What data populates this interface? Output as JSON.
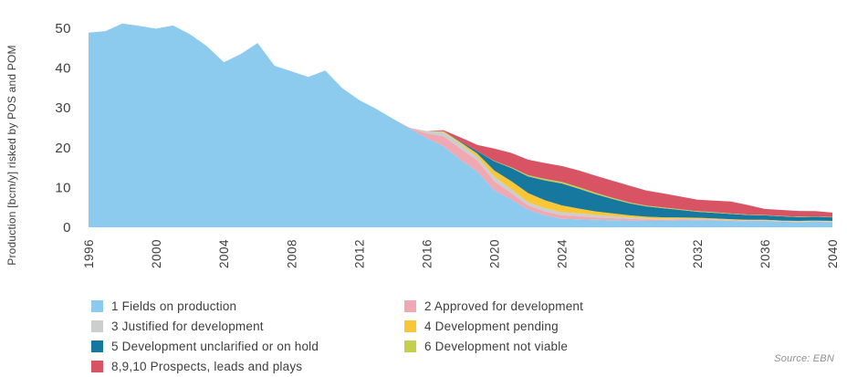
{
  "source": "Source: EBN",
  "colors": {
    "background": "#ffffff",
    "text": "#3e3e3e",
    "source_text": "#8f8f8f"
  },
  "chart_data": {
    "type": "area",
    "stacked": true,
    "title": "",
    "xlabel": "",
    "ylabel": "Production [bcm/y] risked by POS and POM",
    "grid": false,
    "legend_position": "bottom",
    "ylim": [
      0,
      55
    ],
    "y_ticks": [
      0,
      10,
      20,
      30,
      40,
      50
    ],
    "x_ticks": [
      1996,
      2000,
      2004,
      2008,
      2012,
      2016,
      2020,
      2024,
      2028,
      2032,
      2036,
      2040
    ],
    "x": [
      1996,
      1997,
      1998,
      1999,
      2000,
      2001,
      2002,
      2003,
      2004,
      2005,
      2006,
      2007,
      2008,
      2009,
      2010,
      2011,
      2012,
      2013,
      2014,
      2015,
      2016,
      2017,
      2018,
      2019,
      2020,
      2021,
      2022,
      2023,
      2024,
      2025,
      2026,
      2027,
      2028,
      2029,
      2030,
      2031,
      2032,
      2033,
      2034,
      2035,
      2036,
      2037,
      2038,
      2039,
      2040
    ],
    "series": [
      {
        "name": "1 Fields on production",
        "color": "#8dcbee",
        "values": [
          48.9,
          49.3,
          51.2,
          50.6,
          49.9,
          50.7,
          48.5,
          45.5,
          41.5,
          43.5,
          46.3,
          40.6,
          39.2,
          37.8,
          39.4,
          35.0,
          32.0,
          29.8,
          27.3,
          24.8,
          22.4,
          20.4,
          17.0,
          14.0,
          9.3,
          7.0,
          4.4,
          3.0,
          2.1,
          2.0,
          1.9,
          1.8,
          1.7,
          1.6,
          1.6,
          1.7,
          1.8,
          1.7,
          1.6,
          1.5,
          1.5,
          1.4,
          1.3,
          1.4,
          1.3
        ]
      },
      {
        "name": "2 Approved for development",
        "color": "#f0a8b2",
        "values": [
          0,
          0,
          0,
          0,
          0,
          0,
          0,
          0,
          0,
          0,
          0,
          0,
          0,
          0,
          0,
          0,
          0,
          0,
          0,
          0.2,
          1.2,
          2.5,
          2.8,
          2.8,
          2.3,
          1.6,
          1.1,
          1.0,
          0.9,
          0.8,
          0.6,
          0.5,
          0.4,
          0.35,
          0.3,
          0.25,
          0.2,
          0.2,
          0.15,
          0.15,
          0.15,
          0.1,
          0.1,
          0.1,
          0.1
        ]
      },
      {
        "name": "3 Justified for development",
        "color": "#cbcecd",
        "values": [
          0,
          0,
          0,
          0,
          0,
          0,
          0,
          0,
          0,
          0,
          0,
          0,
          0,
          0,
          0,
          0,
          0,
          0,
          0,
          0,
          0.6,
          1.0,
          1.2,
          0.9,
          1.2,
          1.0,
          0.8,
          0.8,
          0.8,
          0.7,
          0.6,
          0.5,
          0.4,
          0.3,
          0.25,
          0.2,
          0.15,
          0.15,
          0.1,
          0.1,
          0.1,
          0.1,
          0.1,
          0.1,
          0.1
        ]
      },
      {
        "name": "4 Development pending",
        "color": "#f9c636",
        "values": [
          0,
          0,
          0,
          0,
          0,
          0,
          0,
          0,
          0,
          0,
          0,
          0,
          0,
          0,
          0,
          0,
          0,
          0,
          0,
          0,
          0,
          0.2,
          0.4,
          0.8,
          1.5,
          2.0,
          2.3,
          2.0,
          1.7,
          1.2,
          0.9,
          0.7,
          0.5,
          0.4,
          0.35,
          0.3,
          0.25,
          0.2,
          0.2,
          0.15,
          0.15,
          0.1,
          0.1,
          0.1,
          0.1
        ]
      },
      {
        "name": "5 Development unclarified or on hold",
        "color": "#16789f",
        "values": [
          0,
          0,
          0,
          0,
          0,
          0,
          0,
          0,
          0,
          0,
          0,
          0,
          0,
          0,
          0,
          0,
          0,
          0,
          0,
          0,
          0,
          0,
          0.2,
          0.6,
          2.3,
          3.3,
          4.2,
          5.0,
          5.5,
          5.0,
          4.3,
          3.6,
          3.0,
          2.6,
          2.3,
          1.9,
          1.5,
          1.4,
          1.3,
          1.2,
          1.1,
          1.05,
          1.0,
          0.95,
          0.9
        ]
      },
      {
        "name": "6 Development not viable",
        "color": "#c4cf4d",
        "values": [
          0,
          0,
          0,
          0,
          0,
          0,
          0,
          0,
          0,
          0,
          0,
          0,
          0,
          0,
          0,
          0,
          0,
          0,
          0,
          0,
          0,
          0,
          0,
          0,
          0.1,
          0.2,
          0.3,
          0.35,
          0.4,
          0.4,
          0.35,
          0.3,
          0.25,
          0.2,
          0.2,
          0.18,
          0.15,
          0.15,
          0.12,
          0.1,
          0.1,
          0.1,
          0.1,
          0.1,
          0.1
        ]
      },
      {
        "name": "8,9,10 Prospects, leads and plays",
        "color": "#d85465",
        "values": [
          0,
          0,
          0,
          0,
          0,
          0,
          0,
          0,
          0,
          0,
          0,
          0,
          0,
          0,
          0,
          0,
          0,
          0,
          0,
          0,
          0,
          0.3,
          1.0,
          1.6,
          3.1,
          3.6,
          3.9,
          4.0,
          4.0,
          4.2,
          4.3,
          4.3,
          4.2,
          3.8,
          3.5,
          3.2,
          2.9,
          2.9,
          3.0,
          2.4,
          1.5,
          1.5,
          1.4,
          1.3,
          1.1
        ]
      }
    ]
  },
  "legend": {
    "left_column_indices": [
      0,
      2,
      4,
      6
    ],
    "right_column_indices": [
      1,
      3,
      5
    ]
  }
}
